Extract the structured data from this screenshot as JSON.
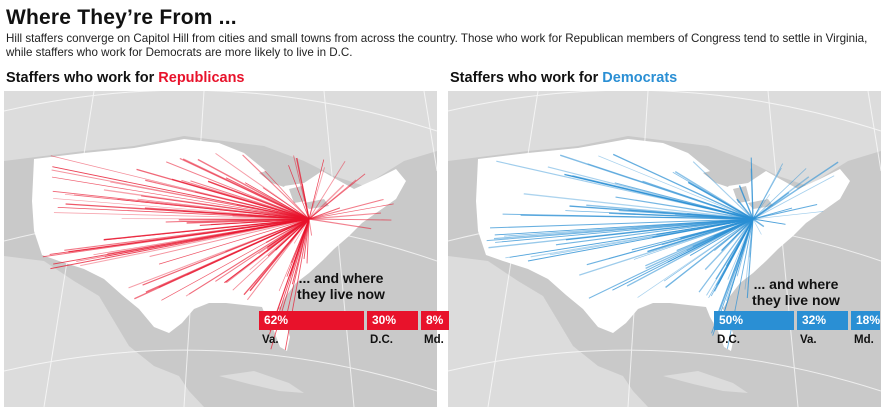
{
  "title": "Where They’re From ...",
  "subtitle": "Hill staffers converge on Capitol Hill from cities and small towns from across the country. Those who work for Republican members of Congress tend to settle in Virginia, while staffers who work for Democrats are more likely to live in D.C.",
  "colors": {
    "republican": "#e8122b",
    "democrat": "#2a8fd4",
    "land": "#ffffff",
    "water": "#c9c9c9",
    "foreign_land": "#dcdcdc"
  },
  "left_panel": {
    "heading_prefix": "Staffers who work for ",
    "heading_party": "Republicans",
    "caption_line1": "... and where",
    "caption_line2": "they live now",
    "bars": [
      {
        "value": "62%",
        "share": 62,
        "label": "Va."
      },
      {
        "value": "30%",
        "share": 30,
        "label": "D.C."
      },
      {
        "value": "8%",
        "share": 8,
        "label": "Md."
      }
    ]
  },
  "right_panel": {
    "heading_prefix": "Staffers who work for ",
    "heading_party": "Democrats",
    "caption_line1": "... and where",
    "caption_line2": "they live now",
    "bars": [
      {
        "value": "50%",
        "share": 50,
        "label": "D.C."
      },
      {
        "value": "32%",
        "share": 32,
        "label": "Va."
      },
      {
        "value": "18%",
        "share": 18,
        "label": "Md."
      }
    ]
  }
}
